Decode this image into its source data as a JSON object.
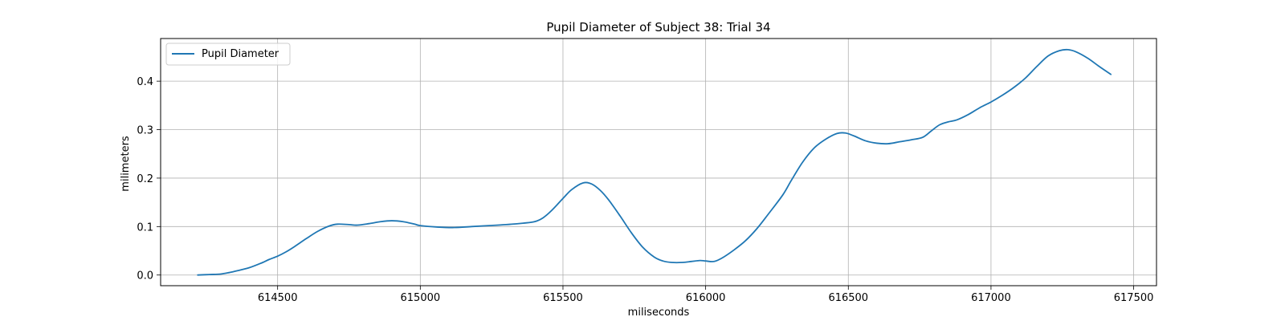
{
  "chart_data": {
    "type": "line",
    "title": "Pupil Diameter of Subject 38: Trial 34",
    "xlabel": "miliseconds",
    "ylabel": "milimeters",
    "xlim": [
      614090,
      617580
    ],
    "ylim": [
      -0.022,
      0.488
    ],
    "xticks": [
      614500,
      615000,
      615500,
      616000,
      616500,
      617000,
      617500
    ],
    "yticks": [
      0.0,
      0.1,
      0.2,
      0.3,
      0.4
    ],
    "ytick_labels": [
      "0.0",
      "0.1",
      "0.2",
      "0.3",
      "0.4"
    ],
    "grid": true,
    "legend_position": "top-left",
    "series": [
      {
        "name": "Pupil Diameter",
        "color": "#1f77b4",
        "x": [
          614220,
          614260,
          614300,
          614330,
          614360,
          614400,
          614440,
          614470,
          614500,
          614530,
          614560,
          614600,
          614640,
          614680,
          614710,
          614750,
          614780,
          614820,
          614860,
          614900,
          614940,
          614980,
          615000,
          615060,
          615120,
          615180,
          615240,
          615300,
          615360,
          615400,
          615430,
          615460,
          615500,
          615530,
          615570,
          615600,
          615630,
          615660,
          615700,
          615740,
          615780,
          615820,
          615850,
          615880,
          615920,
          615950,
          615980,
          616000,
          616030,
          616060,
          616100,
          616140,
          616180,
          616220,
          616270,
          616300,
          616340,
          616380,
          616420,
          616460,
          616490,
          616520,
          616560,
          616600,
          616640,
          616680,
          616720,
          616760,
          616790,
          616820,
          616850,
          616880,
          616920,
          616960,
          617000,
          617040,
          617080,
          617120,
          617160,
          617200,
          617240,
          617270,
          617300,
          617340,
          617380,
          617420
        ],
        "y": [
          0.0,
          0.001,
          0.002,
          0.005,
          0.009,
          0.015,
          0.024,
          0.032,
          0.039,
          0.048,
          0.059,
          0.075,
          0.09,
          0.101,
          0.105,
          0.104,
          0.103,
          0.106,
          0.11,
          0.112,
          0.11,
          0.105,
          0.102,
          0.099,
          0.098,
          0.1,
          0.102,
          0.104,
          0.107,
          0.11,
          0.118,
          0.133,
          0.158,
          0.176,
          0.19,
          0.188,
          0.175,
          0.155,
          0.122,
          0.087,
          0.057,
          0.037,
          0.029,
          0.026,
          0.026,
          0.028,
          0.03,
          0.029,
          0.028,
          0.036,
          0.052,
          0.071,
          0.096,
          0.126,
          0.165,
          0.195,
          0.233,
          0.262,
          0.28,
          0.292,
          0.293,
          0.287,
          0.277,
          0.272,
          0.271,
          0.275,
          0.279,
          0.284,
          0.297,
          0.31,
          0.316,
          0.32,
          0.331,
          0.345,
          0.357,
          0.371,
          0.387,
          0.406,
          0.43,
          0.452,
          0.463,
          0.465,
          0.46,
          0.447,
          0.43,
          0.414
        ]
      }
    ]
  }
}
